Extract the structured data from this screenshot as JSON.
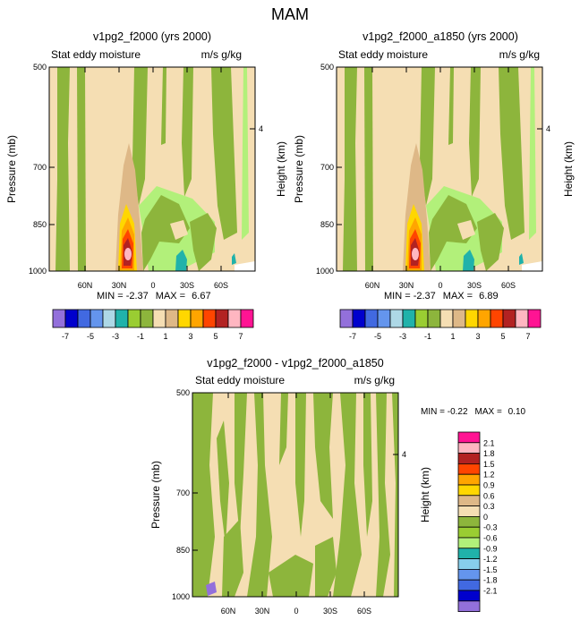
{
  "figure_title": "MAM",
  "chart_data": [
    {
      "type": "heatmap",
      "title": "v1pg2_f2000 (yrs 2000)",
      "left_label": "Stat eddy moisture",
      "right_label": "m/s g/kg",
      "ylabel": "Pressure (mb)",
      "ylabel_right": "Height (km)",
      "yticks": [
        "500",
        "700",
        "850",
        "1000"
      ],
      "yticks_right": [
        "4"
      ],
      "xticks": [
        "60N",
        "30N",
        "0",
        "30S",
        "60S"
      ],
      "min_label": "MIN = ",
      "min_value": "-2.37",
      "max_label": "MAX = ",
      "max_value": "6.67",
      "colorbar": {
        "labels": [
          "-7",
          "-5",
          "-3",
          "-1",
          "1",
          "3",
          "5",
          "7"
        ],
        "colors": [
          "#9370db",
          "#0000cd",
          "#4169e1",
          "#6495ed",
          "#add8e6",
          "#20b2aa",
          "#9acd32",
          "#8db53c",
          "#f5deb3",
          "#deb887",
          "#ffd700",
          "#ffa500",
          "#ff4500",
          "#b22222",
          "#ffb6c1",
          "#ff1493"
        ]
      }
    },
    {
      "type": "heatmap",
      "title": "v1pg2_f2000_a1850 (yrs 2000)",
      "left_label": "Stat eddy moisture",
      "right_label": "m/s g/kg",
      "ylabel": "Pressure (mb)",
      "ylabel_right": "Height (km)",
      "yticks": [
        "500",
        "700",
        "850",
        "1000"
      ],
      "yticks_right": [
        "4"
      ],
      "xticks": [
        "60N",
        "30N",
        "0",
        "30S",
        "60S"
      ],
      "min_label": "MIN = ",
      "min_value": "-2.37",
      "max_label": "MAX = ",
      "max_value": "6.89",
      "colorbar": {
        "labels": [
          "-7",
          "-5",
          "-3",
          "-1",
          "1",
          "3",
          "5",
          "7"
        ],
        "colors": [
          "#9370db",
          "#0000cd",
          "#4169e1",
          "#6495ed",
          "#add8e6",
          "#20b2aa",
          "#9acd32",
          "#8db53c",
          "#f5deb3",
          "#deb887",
          "#ffd700",
          "#ffa500",
          "#ff4500",
          "#b22222",
          "#ffb6c1",
          "#ff1493"
        ]
      }
    },
    {
      "type": "heatmap",
      "title": "v1pg2_f2000 - v1pg2_f2000_a1850",
      "left_label": "Stat eddy moisture",
      "right_label": "m/s g/kg",
      "ylabel": "Pressure (mb)",
      "ylabel_right": "Height (km)",
      "yticks": [
        "500",
        "700",
        "850",
        "1000"
      ],
      "yticks_right": [
        "4"
      ],
      "xticks": [
        "60N",
        "30N",
        "0",
        "30S",
        "60S"
      ],
      "min_label": "MIN = ",
      "min_value": "-0.22",
      "max_label": "MAX = ",
      "max_value": "0.10",
      "colorbar": {
        "labels": [
          "2.1",
          "1.8",
          "1.5",
          "1.2",
          "0.9",
          "0.6",
          "0.3",
          "0",
          "-0.3",
          "-0.6",
          "-0.9",
          "-1.2",
          "-1.5",
          "-1.8",
          "-2.1"
        ],
        "colors": [
          "#ff1493",
          "#ffb6c1",
          "#b22222",
          "#ff4500",
          "#ffa500",
          "#ffd700",
          "#deb887",
          "#f5deb3",
          "#8db53c",
          "#9acd32",
          "#b2f07a",
          "#20b2aa",
          "#87ceeb",
          "#6495ed",
          "#4169e1",
          "#0000cd",
          "#9370db"
        ]
      }
    }
  ]
}
